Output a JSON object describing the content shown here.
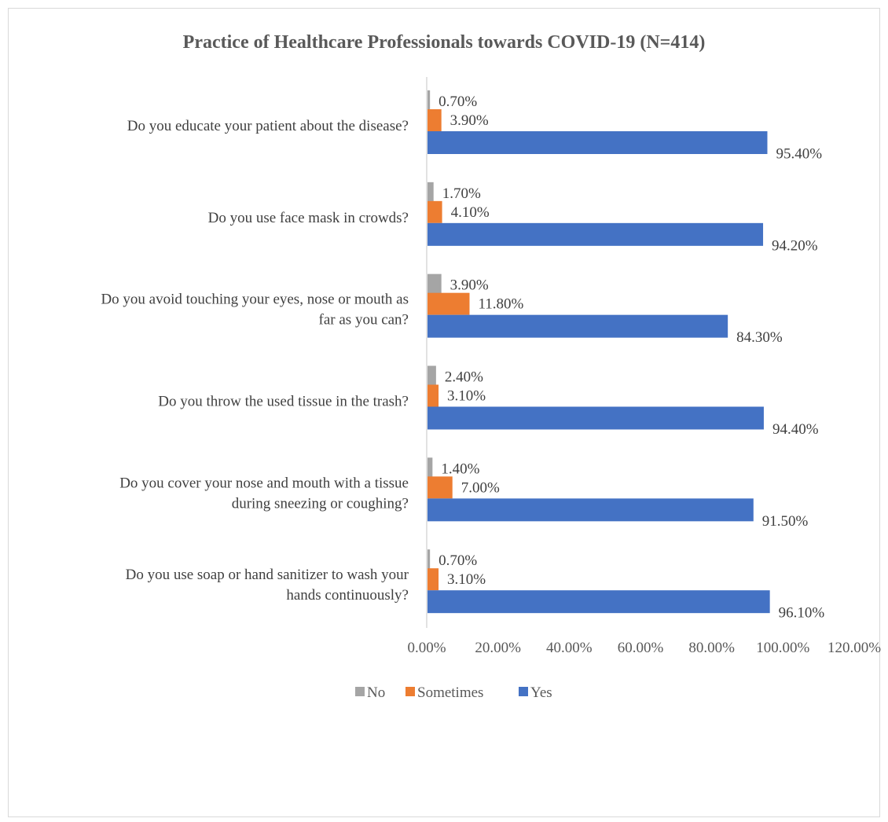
{
  "chart_data": {
    "type": "bar",
    "orientation": "horizontal",
    "title": "Practice of Healthcare Professionals towards COVID-19 (N=414)",
    "xlabel": "",
    "ylabel": "",
    "xlim": [
      0,
      120
    ],
    "x_ticks": [
      "0.00%",
      "20.00%",
      "40.00%",
      "60.00%",
      "80.00%",
      "100.00%",
      "120.00%"
    ],
    "grid": false,
    "legend_position": "bottom",
    "categories": [
      [
        "Do you educate your patient about the disease?"
      ],
      [
        "Do you use face mask in crowds?"
      ],
      [
        "Do you avoid touching your eyes, nose or mouth as",
        "far as you can?"
      ],
      [
        "Do you throw the used tissue in the trash?"
      ],
      [
        "Do you cover your nose and mouth with a tissue",
        "during sneezing or coughing?"
      ],
      [
        "Do you use soap or hand sanitizer to wash your",
        "hands continuously?"
      ]
    ],
    "series": [
      {
        "name": "No",
        "color": "#a5a5a5",
        "values": [
          0.7,
          1.7,
          3.9,
          2.4,
          1.4,
          0.7
        ],
        "labels": [
          "0.70%",
          "1.70%",
          "3.90%",
          "2.40%",
          "1.40%",
          "0.70%"
        ]
      },
      {
        "name": "Sometimes",
        "color": "#ed7d31",
        "values": [
          3.9,
          4.1,
          11.8,
          3.1,
          7.0,
          3.1
        ],
        "labels": [
          "3.90%",
          "4.10%",
          "11.80%",
          "3.10%",
          "7.00%",
          "3.10%"
        ]
      },
      {
        "name": "Yes",
        "color": "#4472c4",
        "values": [
          95.4,
          94.2,
          84.3,
          94.4,
          91.5,
          96.1
        ],
        "labels": [
          "95.40%",
          "94.20%",
          "84.30%",
          "94.40%",
          "91.50%",
          "96.10%"
        ]
      }
    ]
  }
}
